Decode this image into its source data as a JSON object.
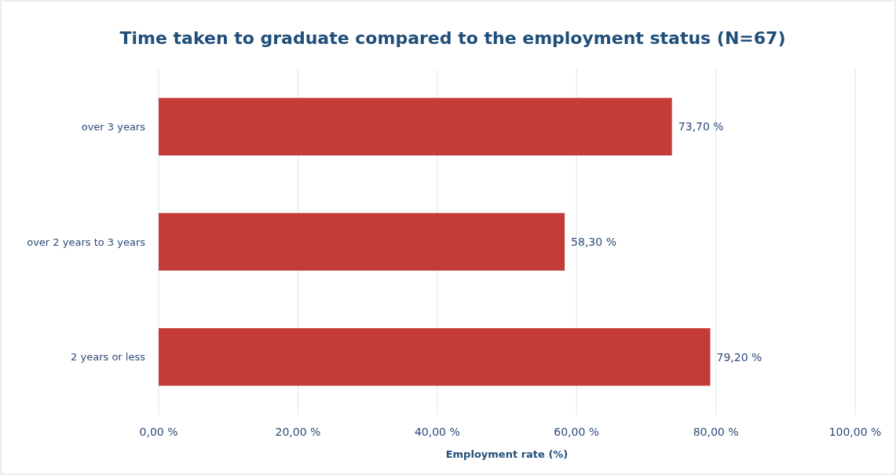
{
  "chart_data": {
    "type": "bar",
    "orientation": "horizontal",
    "title": "Time taken to graduate compared to the employment status (N=67)",
    "xlabel": "Employment rate (%)",
    "categories": [
      "over 3 years",
      "over 2 years to 3 years",
      "2 years or less"
    ],
    "values": [
      73.7,
      58.3,
      79.2
    ],
    "value_labels": [
      "73,70 %",
      "58,30 %",
      "79,20 %"
    ],
    "color": "#c43c38",
    "xlim": [
      0,
      100
    ],
    "xticks": [
      {
        "value": 0,
        "label": "0,00 %"
      },
      {
        "value": 20,
        "label": "20,00 %"
      },
      {
        "value": 40,
        "label": "40,00 %"
      },
      {
        "value": 60,
        "label": "60,00 %"
      },
      {
        "value": 80,
        "label": "80,00 %"
      },
      {
        "value": 100,
        "label": "100,00 %"
      }
    ],
    "grid": "x"
  }
}
